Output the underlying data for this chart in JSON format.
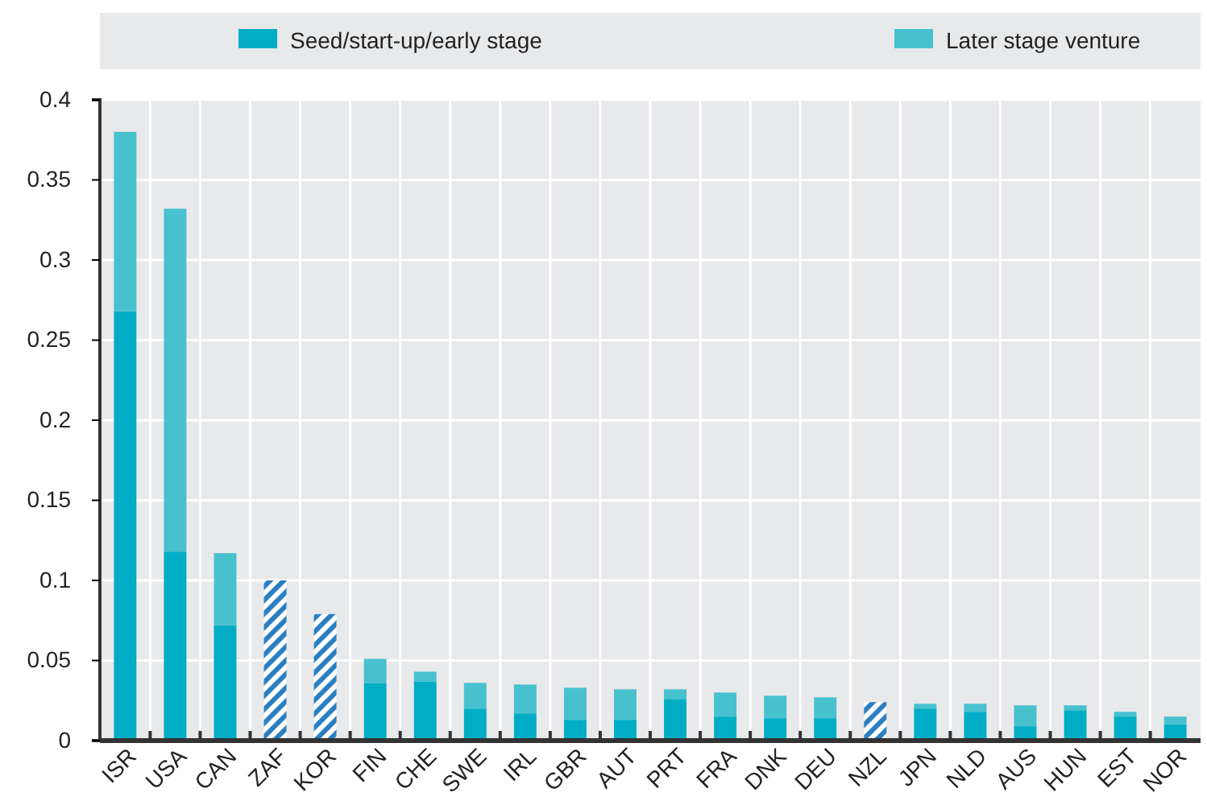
{
  "chart_data": {
    "type": "bar",
    "stacked": true,
    "categories": [
      "ISR",
      "USA",
      "CAN",
      "ZAF",
      "KOR",
      "FIN",
      "CHE",
      "SWE",
      "IRL",
      "GBR",
      "AUT",
      "PRT",
      "FRA",
      "DNK",
      "DEU",
      "NZL",
      "JPN",
      "NLD",
      "AUS",
      "HUN",
      "EST",
      "NOR"
    ],
    "series": [
      {
        "name": "Seed/start-up/early stage",
        "color": "#00adc5",
        "values": [
          0.268,
          0.118,
          0.072,
          null,
          null,
          0.036,
          0.037,
          0.02,
          0.017,
          0.013,
          0.013,
          0.026,
          0.015,
          0.014,
          0.014,
          null,
          0.02,
          0.018,
          0.009,
          0.019,
          0.015,
          0.01
        ]
      },
      {
        "name": "Later stage venture",
        "color": "#48c1cf",
        "values": [
          0.112,
          0.214,
          0.045,
          null,
          null,
          0.015,
          0.006,
          0.016,
          0.018,
          0.02,
          0.019,
          0.006,
          0.015,
          0.014,
          0.013,
          null,
          0.003,
          0.005,
          0.013,
          0.003,
          0.003,
          0.005
        ]
      },
      {
        "color": "#2a7fc2",
        "values": [
          null,
          null,
          null,
          0.1,
          0.079,
          null,
          null,
          null,
          null,
          null,
          null,
          null,
          null,
          null,
          null,
          0.024,
          null,
          null,
          null,
          null,
          null,
          null
        ]
      }
    ],
    "ylim": [
      0,
      0.4
    ],
    "yticks": [
      0,
      0.05,
      0.1,
      0.15,
      0.2,
      0.25,
      0.3,
      0.35,
      0.4
    ],
    "grid": true,
    "legend": "top"
  }
}
